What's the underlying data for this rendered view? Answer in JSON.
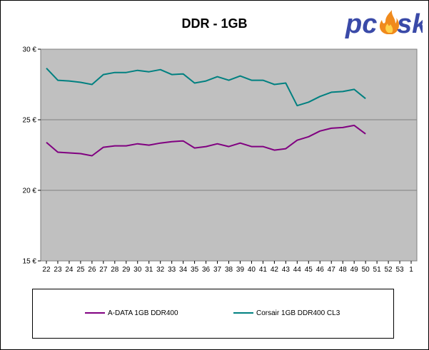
{
  "logo": {
    "text_left": "pc",
    "text_right": "sk"
  },
  "chart_data": {
    "type": "line",
    "title": "DDR - 1GB",
    "categories": [
      "22",
      "23",
      "24",
      "25",
      "26",
      "27",
      "28",
      "29",
      "30",
      "31",
      "32",
      "33",
      "34",
      "35",
      "36",
      "37",
      "38",
      "39",
      "40",
      "41",
      "42",
      "43",
      "44",
      "45",
      "46",
      "47",
      "48",
      "49",
      "50",
      "51",
      "52",
      "53",
      "1"
    ],
    "y_ticks": [
      "15 €",
      "20 €",
      "25 €",
      "30 €"
    ],
    "ylim": [
      15,
      30
    ],
    "grid": true,
    "legend_position": "bottom",
    "series": [
      {
        "name": "A-DATA 1GB DDR400",
        "color": "#800080",
        "values": [
          23.4,
          22.7,
          22.65,
          22.6,
          22.45,
          23.05,
          23.15,
          23.15,
          23.3,
          23.2,
          23.35,
          23.45,
          23.5,
          23.0,
          23.1,
          23.3,
          23.1,
          23.35,
          23.1,
          23.1,
          22.85,
          22.95,
          23.55,
          23.8,
          24.2,
          24.4,
          24.45,
          24.6,
          24.0,
          null,
          null,
          null,
          null
        ]
      },
      {
        "name": "Corsair 1GB DDR400 CL3",
        "color": "#008080",
        "values": [
          28.65,
          27.8,
          27.75,
          27.65,
          27.5,
          28.2,
          28.35,
          28.35,
          28.5,
          28.4,
          28.55,
          28.2,
          28.25,
          27.6,
          27.75,
          28.05,
          27.8,
          28.1,
          27.8,
          27.8,
          27.5,
          27.6,
          26.0,
          26.25,
          26.65,
          26.95,
          27.0,
          27.15,
          26.5,
          null,
          null,
          null,
          null
        ]
      }
    ]
  }
}
